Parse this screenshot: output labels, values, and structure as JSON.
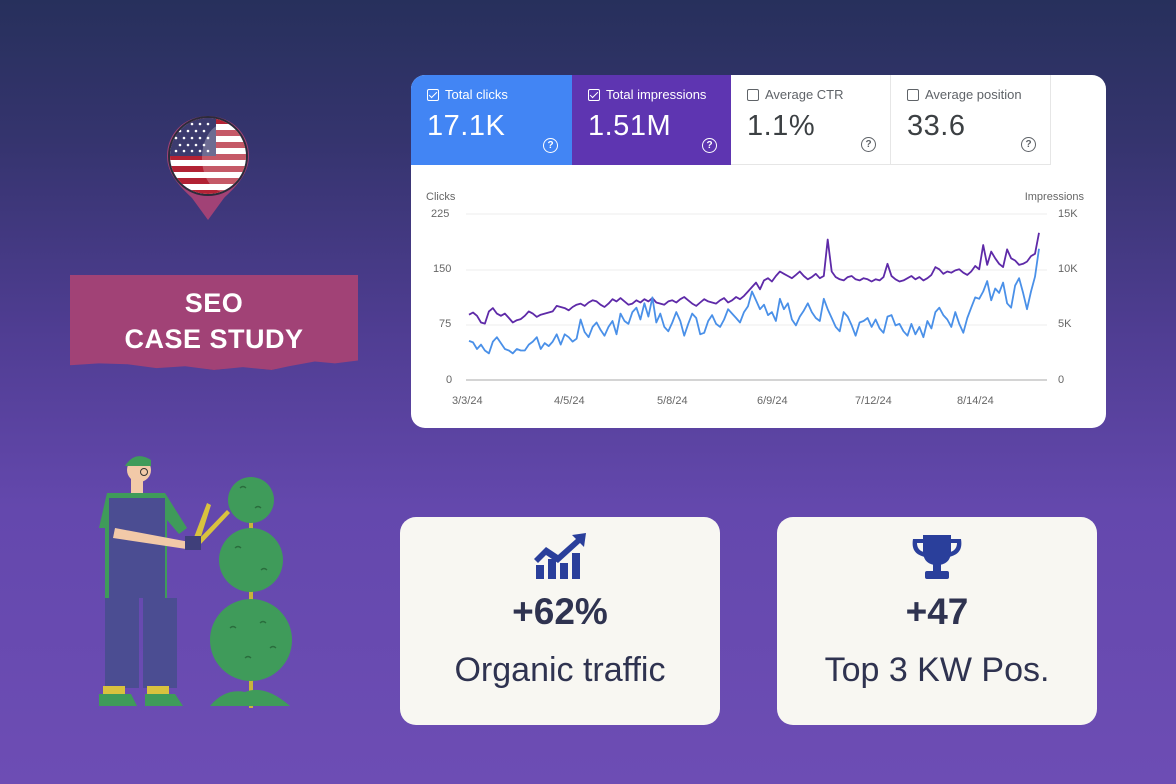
{
  "banner": {
    "line1": "SEO",
    "line2": "CASE STUDY"
  },
  "flag": {
    "country": "United States",
    "icon": "us-flag-map-pin-icon"
  },
  "gsc": {
    "metrics": [
      {
        "label": "Total clicks",
        "value": "17.1K",
        "checked": true,
        "color": "#4285f4"
      },
      {
        "label": "Total impressions",
        "value": "1.51M",
        "checked": true,
        "color": "#5e35b1"
      },
      {
        "label": "Average CTR",
        "value": "1.1%",
        "checked": false
      },
      {
        "label": "Average position",
        "value": "33.6",
        "checked": false
      }
    ],
    "help_glyph": "?"
  },
  "chart_data": {
    "type": "line",
    "title": "",
    "xlabel": "",
    "ylabel": "Clicks",
    "ylabel_right": "Impressions",
    "ylim": [
      0,
      225
    ],
    "ylim_right": [
      0,
      15000
    ],
    "yticks": [
      "0",
      "75",
      "150",
      "225"
    ],
    "yticks_right": [
      "0",
      "5K",
      "10K",
      "15K"
    ],
    "x_tick_labels": [
      "3/3/24",
      "4/5/24",
      "5/8/24",
      "6/9/24",
      "7/12/24",
      "8/14/24"
    ],
    "grid": true,
    "legend": "none",
    "series": [
      {
        "name": "Clicks",
        "axis": "left",
        "color": "#4a90e8",
        "values": [
          53,
          51,
          42,
          48,
          40,
          36,
          52,
          58,
          50,
          42,
          40,
          36,
          42,
          40,
          40,
          48,
          52,
          58,
          42,
          50,
          46,
          52,
          62,
          48,
          62,
          58,
          52,
          56,
          82,
          65,
          58,
          72,
          78,
          68,
          60,
          72,
          80,
          62,
          90,
          80,
          76,
          92,
          98,
          82,
          104,
          86,
          112,
          78,
          90,
          72,
          66,
          78,
          92,
          80,
          60,
          76,
          90,
          84,
          62,
          64,
          80,
          88,
          76,
          72,
          82,
          96,
          90,
          84,
          78,
          92,
          100,
          120,
          108,
          96,
          102,
          88,
          92,
          80,
          110,
          96,
          104,
          82,
          74,
          86,
          94,
          104,
          92,
          84,
          80,
          110,
          96,
          84,
          72,
          66,
          92,
          86,
          74,
          60,
          78,
          80,
          84,
          72,
          82,
          70,
          64,
          86,
          88,
          74,
          76,
          66,
          60,
          76,
          62,
          72,
          58,
          80,
          70,
          92,
          98,
          88,
          82,
          72,
          92,
          76,
          64,
          84,
          98,
          112,
          110,
          120,
          134,
          108,
          124,
          118,
          132,
          104,
          98,
          128,
          138,
          118,
          96,
          120,
          140,
          178
        ]
      },
      {
        "name": "Impressions",
        "axis": "right",
        "color": "#5e2aa8",
        "values": [
          5900,
          6100,
          5800,
          5200,
          5100,
          6200,
          6500,
          6000,
          5800,
          6000,
          5600,
          5200,
          5400,
          5500,
          5800,
          6200,
          6000,
          5700,
          5900,
          6000,
          6100,
          6200,
          6700,
          6600,
          6500,
          6300,
          6600,
          6800,
          6900,
          6700,
          7000,
          7200,
          7100,
          6800,
          6600,
          6900,
          7300,
          7100,
          7400,
          7100,
          6800,
          6900,
          7200,
          7000,
          7300,
          7100,
          7400,
          7000,
          6900,
          6800,
          7100,
          7200,
          7000,
          7300,
          7500,
          7200,
          6900,
          6700,
          7000,
          7300,
          7100,
          7000,
          6900,
          7200,
          7400,
          7000,
          7200,
          7500,
          7300,
          7600,
          8000,
          8400,
          8800,
          8200,
          9000,
          9200,
          8900,
          9400,
          9800,
          9600,
          9400,
          9200,
          9500,
          9800,
          9400,
          9100,
          9300,
          9600,
          9200,
          9400,
          12700,
          9800,
          9300,
          9100,
          9000,
          9300,
          9400,
          9100,
          9000,
          9200,
          9100,
          8900,
          9100,
          9000,
          9300,
          10500,
          9400,
          9100,
          8900,
          9000,
          9200,
          9400,
          9100,
          9300,
          9000,
          9200,
          9500,
          10200,
          10000,
          9600,
          9800,
          9700,
          9900,
          10000,
          9700,
          9500,
          9800,
          10300,
          10000,
          12200,
          10400,
          11600,
          11000,
          10500,
          10200,
          11800,
          11000,
          10800,
          10400,
          10500,
          10700,
          11200,
          11400,
          13300
        ]
      }
    ]
  },
  "stats": [
    {
      "icon": "growth-chart-icon",
      "value": "+62%",
      "caption": "Organic traffic"
    },
    {
      "icon": "trophy-icon",
      "value": "+47",
      "caption": "Top 3 KW Pos."
    }
  ]
}
